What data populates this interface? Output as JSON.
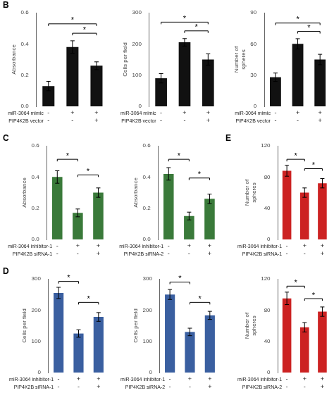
{
  "chart_data": [
    {
      "type": "bar",
      "title": "B",
      "ylabel": "Absorbance",
      "categories": [
        [
          "-",
          "-"
        ],
        [
          "+",
          "-"
        ],
        [
          "+",
          "+"
        ]
      ],
      "xlabel": [
        "miR-3064 mimic",
        "PIP4K2B vector"
      ],
      "values": [
        0.13,
        0.38,
        0.26
      ],
      "errors": [
        0.03,
        0.04,
        0.025
      ],
      "color": "#111111",
      "ylim": [
        0,
        0.6
      ],
      "yticks": [
        {
          "value": 0,
          "label": "0.0"
        },
        0.2,
        0.4,
        0.6
      ],
      "grid": false,
      "significance": [
        {
          "pair": [
            1,
            2
          ],
          "height": 0.455,
          "label": "*"
        },
        {
          "pair": [
            0,
            2
          ],
          "height": 0.515,
          "label": "*"
        }
      ]
    },
    {
      "type": "bar",
      "ylabel": "Cells per field",
      "categories": [
        [
          "-",
          "-"
        ],
        [
          "+",
          "-"
        ],
        [
          "+",
          "+"
        ]
      ],
      "xlabel": [
        "miR-3064 mimic",
        "PIP4K2B vector"
      ],
      "values": [
        90,
        205,
        150
      ],
      "errors": [
        15,
        12,
        18
      ],
      "color": "#111111",
      "ylim": [
        0,
        300
      ],
      "yticks": [
        0,
        100,
        200,
        300
      ],
      "grid": false,
      "significance": [
        {
          "pair": [
            1,
            2
          ],
          "height": 235,
          "label": "*"
        },
        {
          "pair": [
            0,
            2
          ],
          "height": 263,
          "label": "*"
        }
      ]
    },
    {
      "type": "bar",
      "ylabel": "Number of\nspheres",
      "categories": [
        [
          "-",
          "-"
        ],
        [
          "+",
          "-"
        ],
        [
          "+",
          "+"
        ]
      ],
      "xlabel": [
        "miR-3064 mimic",
        "PIP4K2B vector"
      ],
      "values": [
        28,
        60,
        45
      ],
      "errors": [
        4,
        5,
        5
      ],
      "color": "#111111",
      "ylim": [
        0,
        90
      ],
      "yticks": [
        0,
        30,
        60,
        90
      ],
      "grid": false,
      "significance": [
        {
          "pair": [
            1,
            2
          ],
          "height": 70,
          "label": "*"
        },
        {
          "pair": [
            0,
            2
          ],
          "height": 78,
          "label": "*"
        }
      ]
    },
    {
      "type": "bar",
      "title": "C",
      "ylabel": "Absorbance",
      "categories": [
        [
          "-",
          "-"
        ],
        [
          "+",
          "-"
        ],
        [
          "+",
          "+"
        ]
      ],
      "xlabel": [
        "miR-3064 inhibitor-1",
        "PIP4K2B siRNA-1"
      ],
      "values": [
        0.4,
        0.17,
        0.3
      ],
      "errors": [
        0.04,
        0.025,
        0.03
      ],
      "color": "#3a7a3a",
      "ylim": [
        0,
        0.6
      ],
      "yticks": [
        {
          "value": 0,
          "label": "0.0"
        },
        0.2,
        0.4,
        0.6
      ],
      "grid": false,
      "significance": [
        {
          "pair": [
            0,
            1
          ],
          "height": 0.5,
          "label": "*"
        },
        {
          "pair": [
            1,
            2
          ],
          "height": 0.4,
          "label": "*"
        }
      ]
    },
    {
      "type": "bar",
      "ylabel": "Absorbance",
      "categories": [
        [
          "-",
          "-"
        ],
        [
          "+",
          "-"
        ],
        [
          "+",
          "+"
        ]
      ],
      "xlabel": [
        "miR-3064 inhibitor-1",
        "PIP4K2B siRNA-2"
      ],
      "values": [
        0.42,
        0.15,
        0.26
      ],
      "errors": [
        0.04,
        0.025,
        0.03
      ],
      "color": "#3a7a3a",
      "ylim": [
        0,
        0.6
      ],
      "yticks": [
        {
          "value": 0,
          "label": "0.0"
        },
        0.2,
        0.4,
        0.6
      ],
      "grid": false,
      "significance": [
        {
          "pair": [
            0,
            1
          ],
          "height": 0.5,
          "label": "*"
        },
        {
          "pair": [
            1,
            2
          ],
          "height": 0.38,
          "label": "*"
        }
      ]
    },
    {
      "type": "bar",
      "title": "E",
      "ylabel": "Number of\nspheres",
      "categories": [
        [
          "-",
          "-"
        ],
        [
          "+",
          "-"
        ],
        [
          "+",
          "+"
        ]
      ],
      "xlabel": [
        "miR-3064 inhibitor-1",
        "PIP4K2B siRNA-1"
      ],
      "values": [
        88,
        60,
        72
      ],
      "errors": [
        7,
        6,
        6
      ],
      "color": "#cc2222",
      "ylim": [
        0,
        120
      ],
      "yticks": [
        0,
        40,
        80,
        120
      ],
      "grid": false,
      "significance": [
        {
          "pair": [
            0,
            1
          ],
          "height": 100,
          "label": "*"
        },
        {
          "pair": [
            1,
            2
          ],
          "height": 88,
          "label": "*"
        }
      ]
    },
    {
      "type": "bar",
      "title": "D",
      "ylabel": "Cells per field",
      "categories": [
        [
          "-",
          "-"
        ],
        [
          "+",
          "-"
        ],
        [
          "+",
          "+"
        ]
      ],
      "xlabel": [
        "miR-3064 inhibitor-1",
        "PIP4K2B siRNA-1"
      ],
      "values": [
        255,
        125,
        178
      ],
      "errors": [
        18,
        12,
        14
      ],
      "color": "#3a5fa0",
      "ylim": [
        0,
        300
      ],
      "yticks": [
        0,
        100,
        200,
        300
      ],
      "grid": false,
      "significance": [
        {
          "pair": [
            0,
            1
          ],
          "height": 285,
          "label": "*"
        },
        {
          "pair": [
            1,
            2
          ],
          "height": 218,
          "label": "*"
        }
      ]
    },
    {
      "type": "bar",
      "ylabel": "Cells per field",
      "categories": [
        [
          "-",
          "-"
        ],
        [
          "+",
          "-"
        ],
        [
          "+",
          "+"
        ]
      ],
      "xlabel": [
        "miR-3064 inhibitor-1",
        "PIP4K2B siRNA-2"
      ],
      "values": [
        250,
        130,
        183
      ],
      "errors": [
        16,
        12,
        13
      ],
      "color": "#3a5fa0",
      "ylim": [
        0,
        300
      ],
      "yticks": [
        0,
        100,
        200,
        300
      ],
      "grid": false,
      "significance": [
        {
          "pair": [
            0,
            1
          ],
          "height": 283,
          "label": "*"
        },
        {
          "pair": [
            1,
            2
          ],
          "height": 218,
          "label": "*"
        }
      ]
    },
    {
      "type": "bar",
      "ylabel": "Number of\nspheres",
      "categories": [
        [
          "-",
          "-"
        ],
        [
          "+",
          "-"
        ],
        [
          "+",
          "+"
        ]
      ],
      "xlabel": [
        "miR-3064 inhibitor-1",
        "PIP4K2B siRNA-2"
      ],
      "values": [
        95,
        58,
        78
      ],
      "errors": [
        8,
        6,
        6
      ],
      "color": "#cc2222",
      "ylim": [
        0,
        120
      ],
      "yticks": [
        0,
        40,
        80,
        120
      ],
      "grid": false,
      "significance": [
        {
          "pair": [
            0,
            1
          ],
          "height": 108,
          "label": "*"
        },
        {
          "pair": [
            1,
            2
          ],
          "height": 92,
          "label": "*"
        }
      ]
    }
  ]
}
